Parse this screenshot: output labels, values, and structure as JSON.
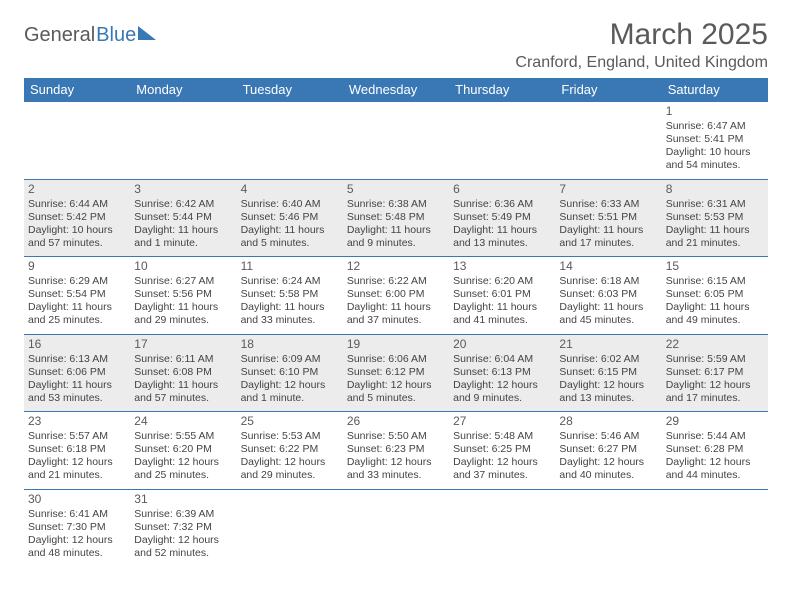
{
  "logo": {
    "part1": "General",
    "part2": "Blue"
  },
  "title": "March 2025",
  "location": "Cranford, England, United Kingdom",
  "colors": {
    "accent": "#3a78b5",
    "text": "#5a5a5a",
    "shade": "#ececec"
  },
  "day_headers": [
    "Sunday",
    "Monday",
    "Tuesday",
    "Wednesday",
    "Thursday",
    "Friday",
    "Saturday"
  ],
  "weeks": [
    [
      null,
      null,
      null,
      null,
      null,
      null,
      {
        "n": "1",
        "sr": "Sunrise: 6:47 AM",
        "ss": "Sunset: 5:41 PM",
        "dl": "Daylight: 10 hours and 54 minutes."
      }
    ],
    [
      {
        "n": "2",
        "sr": "Sunrise: 6:44 AM",
        "ss": "Sunset: 5:42 PM",
        "dl": "Daylight: 10 hours and 57 minutes."
      },
      {
        "n": "3",
        "sr": "Sunrise: 6:42 AM",
        "ss": "Sunset: 5:44 PM",
        "dl": "Daylight: 11 hours and 1 minute."
      },
      {
        "n": "4",
        "sr": "Sunrise: 6:40 AM",
        "ss": "Sunset: 5:46 PM",
        "dl": "Daylight: 11 hours and 5 minutes."
      },
      {
        "n": "5",
        "sr": "Sunrise: 6:38 AM",
        "ss": "Sunset: 5:48 PM",
        "dl": "Daylight: 11 hours and 9 minutes."
      },
      {
        "n": "6",
        "sr": "Sunrise: 6:36 AM",
        "ss": "Sunset: 5:49 PM",
        "dl": "Daylight: 11 hours and 13 minutes."
      },
      {
        "n": "7",
        "sr": "Sunrise: 6:33 AM",
        "ss": "Sunset: 5:51 PM",
        "dl": "Daylight: 11 hours and 17 minutes."
      },
      {
        "n": "8",
        "sr": "Sunrise: 6:31 AM",
        "ss": "Sunset: 5:53 PM",
        "dl": "Daylight: 11 hours and 21 minutes."
      }
    ],
    [
      {
        "n": "9",
        "sr": "Sunrise: 6:29 AM",
        "ss": "Sunset: 5:54 PM",
        "dl": "Daylight: 11 hours and 25 minutes."
      },
      {
        "n": "10",
        "sr": "Sunrise: 6:27 AM",
        "ss": "Sunset: 5:56 PM",
        "dl": "Daylight: 11 hours and 29 minutes."
      },
      {
        "n": "11",
        "sr": "Sunrise: 6:24 AM",
        "ss": "Sunset: 5:58 PM",
        "dl": "Daylight: 11 hours and 33 minutes."
      },
      {
        "n": "12",
        "sr": "Sunrise: 6:22 AM",
        "ss": "Sunset: 6:00 PM",
        "dl": "Daylight: 11 hours and 37 minutes."
      },
      {
        "n": "13",
        "sr": "Sunrise: 6:20 AM",
        "ss": "Sunset: 6:01 PM",
        "dl": "Daylight: 11 hours and 41 minutes."
      },
      {
        "n": "14",
        "sr": "Sunrise: 6:18 AM",
        "ss": "Sunset: 6:03 PM",
        "dl": "Daylight: 11 hours and 45 minutes."
      },
      {
        "n": "15",
        "sr": "Sunrise: 6:15 AM",
        "ss": "Sunset: 6:05 PM",
        "dl": "Daylight: 11 hours and 49 minutes."
      }
    ],
    [
      {
        "n": "16",
        "sr": "Sunrise: 6:13 AM",
        "ss": "Sunset: 6:06 PM",
        "dl": "Daylight: 11 hours and 53 minutes."
      },
      {
        "n": "17",
        "sr": "Sunrise: 6:11 AM",
        "ss": "Sunset: 6:08 PM",
        "dl": "Daylight: 11 hours and 57 minutes."
      },
      {
        "n": "18",
        "sr": "Sunrise: 6:09 AM",
        "ss": "Sunset: 6:10 PM",
        "dl": "Daylight: 12 hours and 1 minute."
      },
      {
        "n": "19",
        "sr": "Sunrise: 6:06 AM",
        "ss": "Sunset: 6:12 PM",
        "dl": "Daylight: 12 hours and 5 minutes."
      },
      {
        "n": "20",
        "sr": "Sunrise: 6:04 AM",
        "ss": "Sunset: 6:13 PM",
        "dl": "Daylight: 12 hours and 9 minutes."
      },
      {
        "n": "21",
        "sr": "Sunrise: 6:02 AM",
        "ss": "Sunset: 6:15 PM",
        "dl": "Daylight: 12 hours and 13 minutes."
      },
      {
        "n": "22",
        "sr": "Sunrise: 5:59 AM",
        "ss": "Sunset: 6:17 PM",
        "dl": "Daylight: 12 hours and 17 minutes."
      }
    ],
    [
      {
        "n": "23",
        "sr": "Sunrise: 5:57 AM",
        "ss": "Sunset: 6:18 PM",
        "dl": "Daylight: 12 hours and 21 minutes."
      },
      {
        "n": "24",
        "sr": "Sunrise: 5:55 AM",
        "ss": "Sunset: 6:20 PM",
        "dl": "Daylight: 12 hours and 25 minutes."
      },
      {
        "n": "25",
        "sr": "Sunrise: 5:53 AM",
        "ss": "Sunset: 6:22 PM",
        "dl": "Daylight: 12 hours and 29 minutes."
      },
      {
        "n": "26",
        "sr": "Sunrise: 5:50 AM",
        "ss": "Sunset: 6:23 PM",
        "dl": "Daylight: 12 hours and 33 minutes."
      },
      {
        "n": "27",
        "sr": "Sunrise: 5:48 AM",
        "ss": "Sunset: 6:25 PM",
        "dl": "Daylight: 12 hours and 37 minutes."
      },
      {
        "n": "28",
        "sr": "Sunrise: 5:46 AM",
        "ss": "Sunset: 6:27 PM",
        "dl": "Daylight: 12 hours and 40 minutes."
      },
      {
        "n": "29",
        "sr": "Sunrise: 5:44 AM",
        "ss": "Sunset: 6:28 PM",
        "dl": "Daylight: 12 hours and 44 minutes."
      }
    ],
    [
      {
        "n": "30",
        "sr": "Sunrise: 6:41 AM",
        "ss": "Sunset: 7:30 PM",
        "dl": "Daylight: 12 hours and 48 minutes."
      },
      {
        "n": "31",
        "sr": "Sunrise: 6:39 AM",
        "ss": "Sunset: 7:32 PM",
        "dl": "Daylight: 12 hours and 52 minutes."
      },
      null,
      null,
      null,
      null,
      null
    ]
  ],
  "shaded_rows": [
    1,
    3
  ]
}
